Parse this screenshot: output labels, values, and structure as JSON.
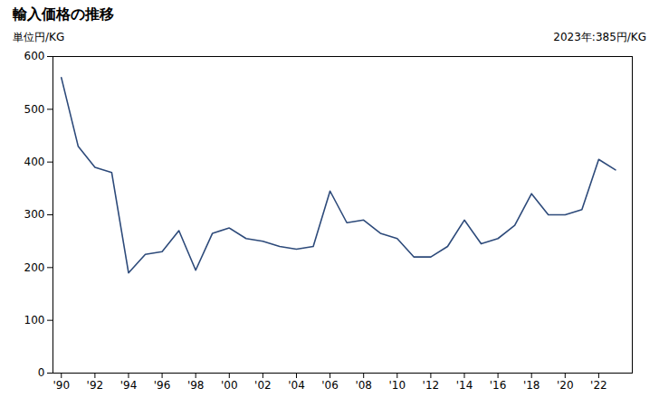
{
  "chart_data": {
    "type": "line",
    "title": "輸入価格の推移",
    "ylabel": "単位円/KG",
    "annotation": "2023年:385円/KG",
    "x": [
      1990,
      1991,
      1992,
      1993,
      1994,
      1995,
      1996,
      1997,
      1998,
      1999,
      2000,
      2001,
      2002,
      2003,
      2004,
      2005,
      2006,
      2007,
      2008,
      2009,
      2010,
      2011,
      2012,
      2013,
      2014,
      2015,
      2016,
      2017,
      2018,
      2019,
      2020,
      2021,
      2022,
      2023
    ],
    "values": [
      560,
      430,
      390,
      380,
      190,
      225,
      230,
      270,
      195,
      265,
      275,
      255,
      250,
      240,
      235,
      240,
      345,
      285,
      290,
      265,
      255,
      220,
      220,
      240,
      290,
      245,
      255,
      280,
      340,
      300,
      300,
      310,
      405,
      385
    ],
    "color": "#2d4a7a",
    "xlim": [
      1989.5,
      2024.0
    ],
    "xticks": [
      {
        "value": 1990,
        "label": "'90"
      },
      {
        "value": 1992,
        "label": "'92"
      },
      {
        "value": 1994,
        "label": "'94"
      },
      {
        "value": 1996,
        "label": "'96"
      },
      {
        "value": 1998,
        "label": "'98"
      },
      {
        "value": 2000,
        "label": "'00"
      },
      {
        "value": 2002,
        "label": "'02"
      },
      {
        "value": 2004,
        "label": "'04"
      },
      {
        "value": 2006,
        "label": "'06"
      },
      {
        "value": 2008,
        "label": "'08"
      },
      {
        "value": 2010,
        "label": "'10"
      },
      {
        "value": 2012,
        "label": "'12"
      },
      {
        "value": 2014,
        "label": "'14"
      },
      {
        "value": 2016,
        "label": "'16"
      },
      {
        "value": 2018,
        "label": "'18"
      },
      {
        "value": 2020,
        "label": "'20"
      },
      {
        "value": 2022,
        "label": "'22"
      }
    ],
    "ylim": [
      0,
      600
    ],
    "yticks": [
      0,
      100,
      200,
      300,
      400,
      500,
      600
    ],
    "grid": false
  }
}
